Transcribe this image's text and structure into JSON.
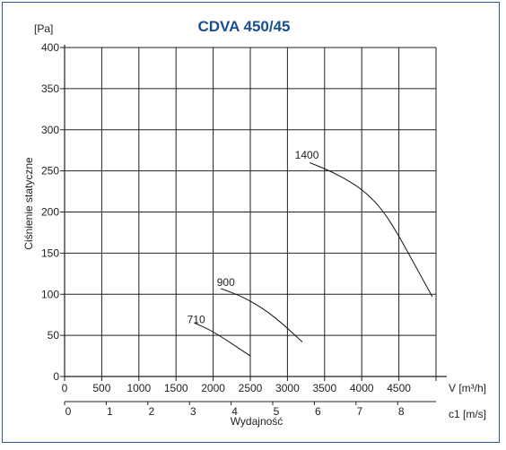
{
  "chart_data": {
    "type": "line",
    "title": "CDVA 450/45",
    "ylabel": "Ciśnienie statyczne",
    "yunit": "[Pa]",
    "ylim": [
      0,
      400
    ],
    "yticks": [
      "0",
      "50",
      "100",
      "150",
      "200",
      "250",
      "300",
      "350",
      "400"
    ],
    "xlabel": "Wydajność",
    "x_flow_unit": "V [m³/h]",
    "xlim": [
      0,
      5000
    ],
    "x_flow_ticks": [
      "0",
      "500",
      "1000",
      "1500",
      "2000",
      "2500",
      "3000",
      "3500",
      "4000",
      "4500"
    ],
    "x_velocity_unit": "c1 [m/s]",
    "x_velocity_ticks": [
      "0",
      "1",
      "2",
      "3",
      "4",
      "5",
      "6",
      "7",
      "8"
    ],
    "grid": true,
    "series": [
      {
        "name": "710",
        "label_at": [
          1650,
          65
        ],
        "x": [
          1750,
          1950,
          2150,
          2300,
          2500
        ],
        "y": [
          65,
          57,
          46,
          37,
          25
        ]
      },
      {
        "name": "900",
        "label_at": [
          2050,
          110
        ],
        "x": [
          2100,
          2400,
          2700,
          2950,
          3200
        ],
        "y": [
          107,
          97,
          81,
          63,
          42
        ]
      },
      {
        "name": "1400",
        "label_at": [
          3100,
          265
        ],
        "x": [
          3300,
          3600,
          3900,
          4100,
          4300,
          4500,
          4700,
          4950
        ],
        "y": [
          260,
          249,
          234,
          220,
          200,
          171,
          138,
          97
        ]
      }
    ]
  }
}
